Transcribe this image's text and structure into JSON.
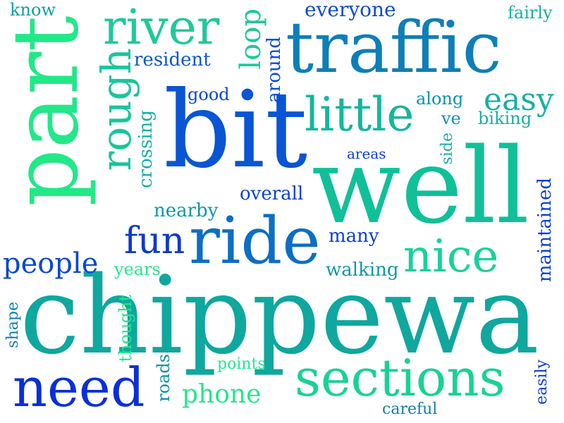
{
  "words": {
    "chippewa": "chippewa",
    "well": "well",
    "bit": "bit",
    "part": "part",
    "traffic": "traffic",
    "ride": "ride",
    "sections": "sections",
    "need": "need",
    "river": "river",
    "rough": "rough",
    "little": "little",
    "nice": "nice",
    "fun": "fun",
    "easy": "easy",
    "people": "people",
    "loop": "loop",
    "phone": "phone",
    "everyone": "everyone",
    "resident": "resident",
    "maintained": "maintained",
    "walking": "walking",
    "overall": "overall",
    "crossing": "crossing",
    "nearby": "nearby",
    "many": "many",
    "around": "around",
    "good": "good",
    "along": "along",
    "biking": "biking",
    "thought": "thought",
    "roads": "roads",
    "points": "points",
    "careful": "careful",
    "easily": "easily",
    "shape": "shape",
    "years": "years",
    "side": "side",
    "ve": "ve",
    "areas": "areas",
    "fairly": "fairly",
    "know": "know"
  },
  "colors": {
    "blue": "#0a3fd6",
    "teal": "#0f8fa8",
    "green": "#12c89a",
    "mint": "#1ee58c"
  }
}
